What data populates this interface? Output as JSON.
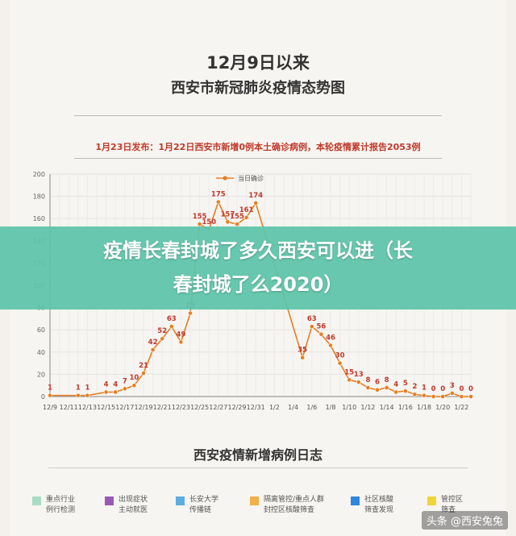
{
  "header": {
    "title_line1": "12月9日以来",
    "title_line2": "西安市新冠肺炎疫情态势图",
    "notice": "1月23日发布：1月22日西安市新增0例本土确诊病例，本轮疫情累计报告2053例"
  },
  "banner": {
    "line1": "疫情长春封城了多久西安可以进（长",
    "line2": "春封城了么2020）"
  },
  "section2": {
    "title": "西安疫情新增病例日志",
    "legend": [
      {
        "label": "重点行业",
        "label2": "例行检测",
        "color": "#a9dcc4"
      },
      {
        "label": "出现症状",
        "label2": "主动就医",
        "color": "#9b59b6"
      },
      {
        "label": "长安大学",
        "label2": "传播链",
        "color": "#5dade2"
      },
      {
        "label": "隔离管控/重点人群",
        "label2": "封控区核酸筛查",
        "color": "#f0b04a"
      },
      {
        "label": "社区核酸",
        "label2": "筛查发现",
        "color": "#2e86de"
      },
      {
        "label": "管控区",
        "label2": "筛查",
        "color": "#f1d437"
      }
    ]
  },
  "watermark": "头条 @西安兔兔",
  "chart_data": {
    "type": "line",
    "title": "",
    "xlabel": "",
    "ylabel": "",
    "ylim": [
      0,
      200
    ],
    "yticks": [
      0,
      20,
      40,
      60,
      80,
      100,
      120,
      140,
      160,
      180,
      200
    ],
    "legend": {
      "position": "top-center",
      "label": "当日确诊"
    },
    "grid": true,
    "color": "#e67e22",
    "xtick_labels": [
      "12/9",
      "12/11",
      "12/13",
      "12/15",
      "12/17",
      "12/19",
      "12/21",
      "12/23",
      "12/25",
      "12/27",
      "12/29",
      "12/31",
      "1/2",
      "1/4",
      "1/6",
      "1/8",
      "1/10",
      "1/12",
      "1/14",
      "1/16",
      "1/18",
      "1/20",
      "1/22"
    ],
    "series": [
      {
        "name": "当日确诊",
        "values": [
          1,
          null,
          null,
          1,
          1,
          null,
          4,
          4,
          7,
          10,
          21,
          42,
          52,
          63,
          49,
          75,
          155,
          150,
          175,
          157,
          155,
          161,
          174,
          null,
          null,
          null,
          null,
          35,
          63,
          56,
          46,
          30,
          15,
          13,
          8,
          6,
          8,
          4,
          5,
          2,
          1,
          0,
          0,
          3,
          0,
          0
        ],
        "labels": [
          "1",
          "",
          "",
          "1",
          "1",
          "",
          "4",
          "4",
          "7",
          "10",
          "21",
          "42",
          "52",
          "63",
          "49",
          "75",
          "155",
          "150",
          "175",
          "157",
          "155",
          "161",
          "174",
          "",
          "",
          "",
          "",
          "35",
          "63",
          "56",
          "46",
          "30",
          "15",
          "13",
          "8",
          "6",
          "8",
          "4",
          "5",
          "2",
          "1",
          "0",
          "0",
          "3",
          "0",
          "0"
        ]
      }
    ]
  }
}
